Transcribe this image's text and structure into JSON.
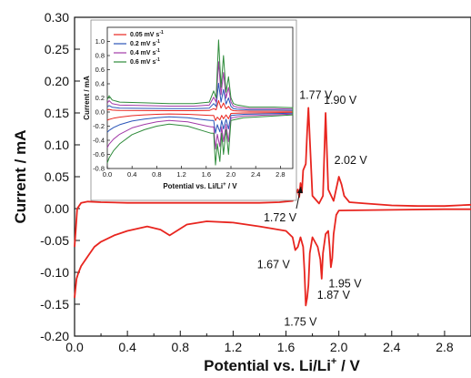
{
  "chart_data": [
    {
      "type": "line",
      "xlabel": "Potential vs. Li/Li",
      "xlabel_sup": "+",
      "xlabel_tail": " / V",
      "ylabel": "Current / mA",
      "xlim": [
        0.0,
        3.0
      ],
      "ylim": [
        -0.2,
        0.3
      ],
      "x_ticks": [
        "0.0",
        "0.4",
        "0.8",
        "1.2",
        "1.6",
        "2.0",
        "2.4",
        "2.8"
      ],
      "y_ticks": [
        "-0.20",
        "-0.15",
        "-0.10",
        "-0.05",
        "0.00",
        "0.05",
        "0.10",
        "0.15",
        "0.20",
        "0.25",
        "0.30"
      ],
      "line_color": "#e8251f",
      "series": [
        {
          "x": [
            0.0,
            0.01,
            0.02,
            0.05,
            0.1,
            0.2,
            0.4,
            0.6,
            0.8,
            1.0,
            1.2,
            1.4,
            1.55,
            1.65,
            1.69,
            1.7,
            1.71,
            1.72,
            1.73,
            1.75,
            1.76,
            1.77,
            1.78,
            1.8,
            1.85,
            1.88,
            1.9,
            1.92,
            1.96,
            2.0,
            2.02,
            2.04,
            2.08,
            2.2,
            2.4,
            2.6,
            2.8,
            3.0
          ],
          "y": [
            -0.06,
            -0.03,
            0.0,
            0.009,
            0.011,
            0.01,
            0.009,
            0.009,
            0.009,
            0.009,
            0.009,
            0.009,
            0.01,
            0.012,
            0.03,
            0.018,
            0.04,
            0.025,
            0.06,
            0.07,
            0.12,
            0.158,
            0.11,
            0.02,
            0.008,
            0.02,
            0.15,
            0.03,
            0.012,
            0.05,
            0.038,
            0.02,
            0.01,
            0.008,
            0.005,
            0.004,
            0.004,
            0.006
          ]
        },
        {
          "x": [
            3.0,
            2.8,
            2.4,
            2.0,
            1.98,
            1.96,
            1.95,
            1.94,
            1.93,
            1.92,
            1.9,
            1.88,
            1.87,
            1.86,
            1.84,
            1.8,
            1.78,
            1.77,
            1.76,
            1.75,
            1.74,
            1.73,
            1.71,
            1.69,
            1.67,
            1.65,
            1.6,
            1.4,
            1.2,
            1.0,
            0.85,
            0.75,
            0.72,
            0.65,
            0.55,
            0.4,
            0.3,
            0.2,
            0.15,
            0.1,
            0.05,
            0.03,
            0.015,
            0.005,
            0.0
          ],
          "y": [
            -0.001,
            -0.001,
            -0.002,
            -0.003,
            -0.01,
            -0.04,
            -0.078,
            -0.092,
            -0.06,
            -0.035,
            -0.04,
            -0.07,
            -0.11,
            -0.08,
            -0.06,
            -0.045,
            -0.07,
            -0.12,
            -0.14,
            -0.152,
            -0.1,
            -0.06,
            -0.045,
            -0.06,
            -0.065,
            -0.045,
            -0.035,
            -0.028,
            -0.022,
            -0.02,
            -0.025,
            -0.038,
            -0.042,
            -0.033,
            -0.028,
            -0.035,
            -0.042,
            -0.052,
            -0.06,
            -0.075,
            -0.09,
            -0.1,
            -0.11,
            -0.13,
            -0.14
          ]
        }
      ],
      "annotations": [
        {
          "text": "1.77 V",
          "x": 1.77,
          "y": 0.158
        },
        {
          "text": "1.90 V",
          "x": 1.9,
          "y": 0.15
        },
        {
          "text": "2.02 V",
          "x": 2.02,
          "y": 0.05
        },
        {
          "text": "1.72 V",
          "x": 1.72,
          "y": 0.04
        },
        {
          "text": "1.67 V",
          "x": 1.67,
          "y": -0.065
        },
        {
          "text": "1.87 V",
          "x": 1.87,
          "y": -0.11
        },
        {
          "text": "1.95 V",
          "x": 1.95,
          "y": -0.092
        },
        {
          "text": "1.75 V",
          "x": 1.75,
          "y": -0.152
        }
      ]
    },
    {
      "type": "line",
      "xlabel": "Potential vs. Li/Li",
      "xlabel_sup": "+",
      "xlabel_tail": " / V",
      "ylabel": "Current / mA",
      "xlim": [
        0.0,
        3.0
      ],
      "ylim": [
        -0.8,
        1.2
      ],
      "x_ticks": [
        "0.0",
        "0.4",
        "0.8",
        "1.2",
        "1.6",
        "2.0",
        "2.4",
        "2.8"
      ],
      "y_ticks": [
        "-0.8",
        "-0.6",
        "-0.4",
        "-0.2",
        "0.0",
        "0.2",
        "0.4",
        "0.6",
        "0.8",
        "1.0"
      ],
      "legend_position": "top-left",
      "series": [
        {
          "name": "0.05 mV s",
          "name_sup": "-1",
          "color": "#e8251f",
          "scale": 0.16
        },
        {
          "name": "0.2 mV s",
          "name_sup": "-1",
          "color": "#2b55b8",
          "scale": 0.4
        },
        {
          "name": "0.4 mV s",
          "name_sup": "-1",
          "color": "#a23aa8",
          "scale": 0.7
        },
        {
          "name": "0.6 mV s",
          "name_sup": "-1",
          "color": "#2e8b3a",
          "scale": 1.0
        }
      ],
      "base_curve": {
        "anodic_x": [
          0.0,
          0.03,
          0.08,
          0.2,
          0.6,
          1.0,
          1.4,
          1.65,
          1.72,
          1.76,
          1.8,
          1.84,
          1.88,
          1.92,
          1.96,
          2.0,
          2.04,
          2.1,
          2.3,
          2.7,
          3.0
        ],
        "anodic_y": [
          0.18,
          0.23,
          0.17,
          0.14,
          0.13,
          0.12,
          0.12,
          0.14,
          0.3,
          0.2,
          1.02,
          0.35,
          0.8,
          0.28,
          0.5,
          0.2,
          0.12,
          0.1,
          0.07,
          0.07,
          0.06
        ],
        "cathodic_x": [
          3.0,
          2.6,
          2.2,
          2.0,
          1.96,
          1.92,
          1.88,
          1.85,
          1.82,
          1.78,
          1.75,
          1.72,
          1.68,
          1.6,
          1.3,
          1.0,
          0.8,
          0.6,
          0.4,
          0.2,
          0.1,
          0.03,
          0.0
        ],
        "cathodic_y": [
          -0.04,
          -0.06,
          -0.08,
          -0.12,
          -0.6,
          -0.25,
          -0.6,
          -0.3,
          -0.7,
          -0.45,
          -0.75,
          -0.3,
          -0.3,
          -0.28,
          -0.2,
          -0.17,
          -0.2,
          -0.25,
          -0.32,
          -0.45,
          -0.55,
          -0.65,
          -0.72
        ]
      }
    }
  ]
}
